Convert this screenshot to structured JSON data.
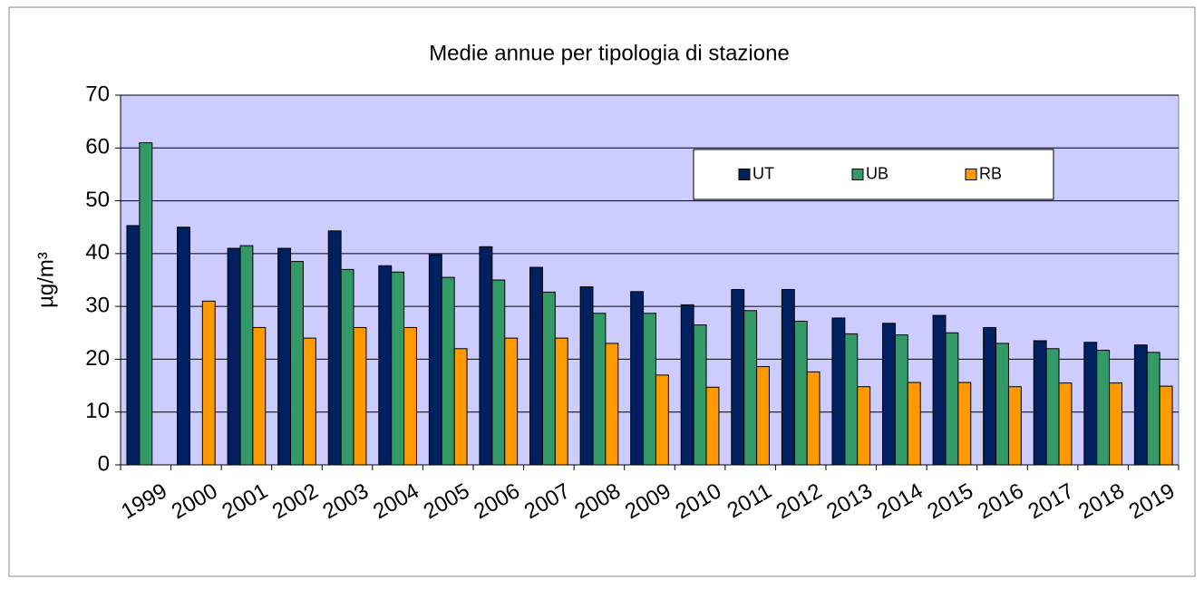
{
  "chart_data": {
    "type": "bar",
    "title": "Medie annue per tipologia di stazione",
    "y_label": "µg/m³",
    "categories": [
      "1999",
      "2000",
      "2001",
      "2002",
      "2003",
      "2004",
      "2005",
      "2006",
      "2007",
      "2008",
      "2009",
      "2010",
      "2011",
      "2012",
      "2013",
      "2014",
      "2015",
      "2016",
      "2017",
      "2018",
      "2019"
    ],
    "series": [
      {
        "name": "UT",
        "color": "#002060",
        "values": [
          45.3,
          45,
          41,
          41,
          44.3,
          37.7,
          39.8,
          41.3,
          37.4,
          33.7,
          32.8,
          30.3,
          33.2,
          33.2,
          27.8,
          26.8,
          28.3,
          26,
          23.5,
          23.2,
          22.7
        ]
      },
      {
        "name": "UB",
        "color": "#339966",
        "values": [
          61,
          null,
          41.5,
          38.5,
          37,
          36.5,
          35.5,
          35,
          32.7,
          28.7,
          28.7,
          26.5,
          29.2,
          27.2,
          24.8,
          24.6,
          25,
          23,
          22,
          21.7,
          21.3
        ]
      },
      {
        "name": "RB",
        "color": "#ff9900",
        "values": [
          null,
          31,
          26,
          24,
          26,
          26,
          22,
          24,
          24,
          23,
          17,
          14.7,
          18.6,
          17.6,
          14.8,
          15.6,
          15.6,
          14.8,
          15.5,
          15.5,
          14.9
        ]
      }
    ],
    "ylim": [
      0,
      70
    ],
    "yticks": [
      0,
      10,
      20,
      30,
      40,
      50,
      60,
      70
    ],
    "grid": true,
    "legend_position": "top-right"
  }
}
